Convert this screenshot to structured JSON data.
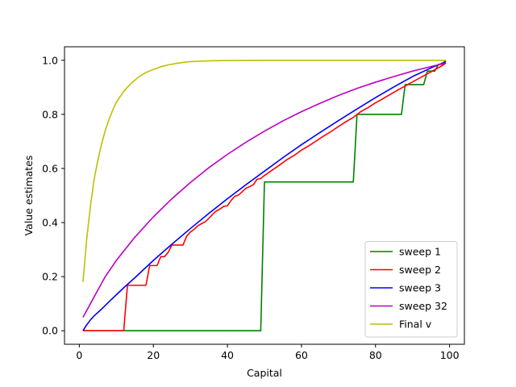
{
  "chart_data": {
    "type": "line",
    "title": "",
    "xlabel": "Capital",
    "ylabel": "Value estimates",
    "xlim": [
      -4,
      104
    ],
    "ylim": [
      -0.05,
      1.05
    ],
    "xticks": [
      0,
      20,
      40,
      60,
      80,
      100
    ],
    "xtick_labels": [
      "0",
      "20",
      "40",
      "60",
      "80",
      "100"
    ],
    "yticks": [
      0.0,
      0.2,
      0.4,
      0.6,
      0.8,
      1.0
    ],
    "ytick_labels": [
      "0.0",
      "0.2",
      "0.4",
      "0.6",
      "0.8",
      "1.0"
    ],
    "grid": false,
    "legend_position": "lower-right",
    "series": [
      {
        "name": "sweep 1",
        "color": "#008000",
        "points": [
          [
            1,
            0
          ],
          [
            49,
            0
          ],
          [
            50,
            0.55
          ],
          [
            74,
            0.55
          ],
          [
            75,
            0.8
          ],
          [
            87,
            0.8
          ],
          [
            88,
            0.91
          ],
          [
            93,
            0.91
          ],
          [
            94,
            0.96
          ],
          [
            96,
            0.96
          ],
          [
            97,
            0.985
          ],
          [
            98,
            0.985
          ],
          [
            99,
            1.0
          ]
        ]
      },
      {
        "name": "sweep 2",
        "color": "#ff0000",
        "points": [
          [
            1,
            0
          ],
          [
            12,
            0
          ],
          [
            13,
            0.168
          ],
          [
            18,
            0.168
          ],
          [
            19,
            0.241
          ],
          [
            21,
            0.241
          ],
          [
            22,
            0.274
          ],
          [
            23,
            0.274
          ],
          [
            24,
            0.29
          ],
          [
            25,
            0.317
          ],
          [
            28,
            0.317
          ],
          [
            29,
            0.35
          ],
          [
            30,
            0.365
          ],
          [
            31,
            0.375
          ],
          [
            32,
            0.388
          ],
          [
            33,
            0.396
          ],
          [
            34,
            0.403
          ],
          [
            35,
            0.416
          ],
          [
            36,
            0.43
          ],
          [
            37,
            0.443
          ],
          [
            38,
            0.45
          ],
          [
            39,
            0.46
          ],
          [
            40,
            0.462
          ],
          [
            41,
            0.482
          ],
          [
            42,
            0.497
          ],
          [
            43,
            0.502
          ],
          [
            44,
            0.514
          ],
          [
            45,
            0.527
          ],
          [
            46,
            0.533
          ],
          [
            47,
            0.54
          ],
          [
            48,
            0.56
          ],
          [
            49,
            0.563
          ],
          [
            50,
            0.574
          ],
          [
            52,
            0.593
          ],
          [
            54,
            0.612
          ],
          [
            56,
            0.632
          ],
          [
            58,
            0.648
          ],
          [
            60,
            0.668
          ],
          [
            62,
            0.684
          ],
          [
            64,
            0.702
          ],
          [
            66,
            0.72
          ],
          [
            68,
            0.737
          ],
          [
            70,
            0.755
          ],
          [
            72,
            0.773
          ],
          [
            74,
            0.789
          ],
          [
            76,
            0.81
          ],
          [
            78,
            0.825
          ],
          [
            80,
            0.843
          ],
          [
            82,
            0.858
          ],
          [
            84,
            0.874
          ],
          [
            86,
            0.89
          ],
          [
            88,
            0.905
          ],
          [
            90,
            0.92
          ],
          [
            92,
            0.935
          ],
          [
            94,
            0.95
          ],
          [
            96,
            0.965
          ],
          [
            98,
            0.98
          ],
          [
            99,
            0.99
          ]
        ]
      },
      {
        "name": "sweep 3",
        "color": "#0000ff",
        "points": [
          [
            1,
            0
          ],
          [
            2,
            0.022
          ],
          [
            3,
            0.04
          ],
          [
            4,
            0.055
          ],
          [
            6,
            0.08
          ],
          [
            8,
            0.107
          ],
          [
            10,
            0.133
          ],
          [
            12,
            0.159
          ],
          [
            15,
            0.196
          ],
          [
            20,
            0.26
          ],
          [
            25,
            0.32
          ],
          [
            30,
            0.378
          ],
          [
            35,
            0.434
          ],
          [
            40,
            0.488
          ],
          [
            45,
            0.54
          ],
          [
            50,
            0.59
          ],
          [
            55,
            0.64
          ],
          [
            60,
            0.688
          ],
          [
            65,
            0.733
          ],
          [
            70,
            0.777
          ],
          [
            75,
            0.82
          ],
          [
            80,
            0.862
          ],
          [
            85,
            0.902
          ],
          [
            90,
            0.94
          ],
          [
            95,
            0.972
          ],
          [
            99,
            0.995
          ]
        ]
      },
      {
        "name": "sweep 32",
        "color": "#bf00bf",
        "points": [
          [
            1,
            0.05
          ],
          [
            3,
            0.1
          ],
          [
            5,
            0.15
          ],
          [
            7,
            0.2
          ],
          [
            10,
            0.26
          ],
          [
            15,
            0.346
          ],
          [
            20,
            0.421
          ],
          [
            25,
            0.488
          ],
          [
            30,
            0.548
          ],
          [
            35,
            0.603
          ],
          [
            40,
            0.652
          ],
          [
            45,
            0.697
          ],
          [
            50,
            0.738
          ],
          [
            55,
            0.776
          ],
          [
            60,
            0.81
          ],
          [
            65,
            0.841
          ],
          [
            70,
            0.87
          ],
          [
            75,
            0.896
          ],
          [
            80,
            0.919
          ],
          [
            85,
            0.94
          ],
          [
            90,
            0.96
          ],
          [
            95,
            0.977
          ],
          [
            99,
            0.99
          ]
        ]
      },
      {
        "name": "Final v",
        "color": "#bfbf00",
        "points": [
          [
            1,
            0.18
          ],
          [
            2,
            0.34
          ],
          [
            3,
            0.46
          ],
          [
            4,
            0.56
          ],
          [
            5,
            0.63
          ],
          [
            6,
            0.69
          ],
          [
            7,
            0.74
          ],
          [
            8,
            0.78
          ],
          [
            9,
            0.815
          ],
          [
            10,
            0.845
          ],
          [
            12,
            0.885
          ],
          [
            14,
            0.915
          ],
          [
            16,
            0.938
          ],
          [
            18,
            0.955
          ],
          [
            20,
            0.966
          ],
          [
            22,
            0.976
          ],
          [
            24,
            0.983
          ],
          [
            26,
            0.988
          ],
          [
            28,
            0.992
          ],
          [
            30,
            0.995
          ],
          [
            35,
            0.998
          ],
          [
            40,
            0.999
          ],
          [
            50,
            1.0
          ],
          [
            70,
            1.0
          ],
          [
            99,
            1.0
          ]
        ]
      }
    ]
  }
}
